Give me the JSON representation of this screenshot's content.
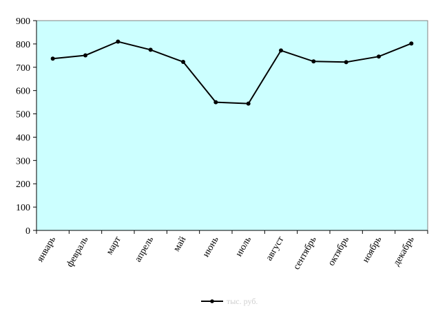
{
  "chart_data": {
    "type": "line",
    "categories": [
      "январь",
      "февраль",
      "март",
      "апрель",
      "май",
      "июнь",
      "июль",
      "август",
      "сентябрь",
      "октябрь",
      "ноябрь",
      "декабрь"
    ],
    "series": [
      {
        "name": "тыс. руб.",
        "values": [
          737,
          751,
          810,
          775,
          723,
          550,
          544,
          772,
          725,
          722,
          746,
          802
        ]
      }
    ],
    "ylim": [
      0,
      900
    ],
    "yticks": [
      "0",
      "100",
      "200",
      "300",
      "400",
      "500",
      "600",
      "700",
      "800",
      "900"
    ],
    "title": "",
    "xlabel": "",
    "ylabel": "",
    "grid": false,
    "legend_position": "bottom",
    "colors": {
      "plot_background": "#ccffff",
      "line": "#000000",
      "legend_text": "#cfcfcf"
    }
  }
}
